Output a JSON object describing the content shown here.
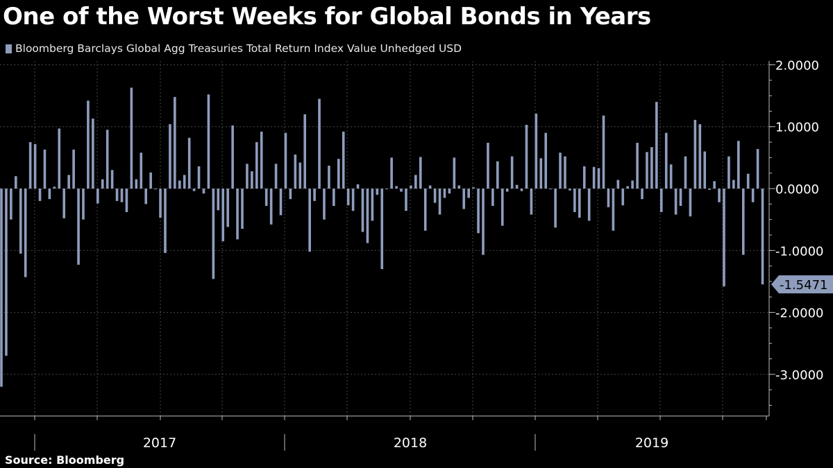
{
  "title": "One of the Worst Weeks for Global Bonds in Years",
  "source": "Source: Bloomberg",
  "colors": {
    "bar": "#8f9dbd",
    "background": "#000000",
    "grid": "#4a4a4a",
    "text": "#ffffff",
    "callout": "#8f9dbd"
  },
  "chart_data": {
    "type": "bar",
    "title": "One of the Worst Weeks for Global Bonds in Years",
    "series": [
      {
        "name": "Bloomberg Barclays Global Agg Treasuries Total Return Index Value Unhedged USD",
        "values": [
          -3.2,
          -2.7,
          -0.5,
          0.2,
          -1.05,
          -1.43,
          0.75,
          0.72,
          -0.2,
          0.63,
          -0.17,
          0.03,
          0.97,
          -0.48,
          0.22,
          0.63,
          -1.23,
          -0.5,
          1.42,
          1.13,
          -0.24,
          0.15,
          0.95,
          0.3,
          -0.2,
          -0.22,
          -0.38,
          1.63,
          0.15,
          0.58,
          -0.25,
          0.26,
          0.0,
          -0.47,
          -1.04,
          1.04,
          1.48,
          0.13,
          0.22,
          0.82,
          -0.04,
          0.36,
          -0.08,
          1.52,
          -1.46,
          -0.35,
          -0.85,
          -0.62,
          1.02,
          -0.82,
          -0.65,
          0.4,
          0.28,
          0.75,
          0.92,
          -0.28,
          -0.58,
          0.4,
          -0.43,
          0.9,
          -0.17,
          0.55,
          0.42,
          1.2,
          -1.02,
          -0.2,
          1.45,
          -0.5,
          0.37,
          -0.28,
          0.48,
          0.92,
          -0.27,
          -0.36,
          0.07,
          -0.7,
          -0.88,
          -0.52,
          -0.1,
          -1.3,
          0.0,
          0.5,
          0.04,
          -0.05,
          -0.36,
          0.05,
          0.22,
          0.51,
          -0.68,
          0.05,
          -0.23,
          -0.42,
          -0.15,
          -0.08,
          0.5,
          0.05,
          -0.33,
          -0.15,
          0.02,
          -0.72,
          -1.07,
          0.74,
          -0.28,
          0.44,
          -0.6,
          -0.05,
          0.52,
          0.06,
          -0.04,
          1.03,
          -0.42,
          1.21,
          0.49,
          0.9,
          0.0,
          -0.63,
          0.58,
          0.52,
          -0.03,
          -0.38,
          -0.47,
          0.36,
          -0.52,
          0.35,
          0.33,
          1.18,
          -0.3,
          -0.68,
          0.14,
          -0.27,
          0.04,
          0.13,
          0.74,
          -0.17,
          0.59,
          0.67,
          1.4,
          -0.38,
          0.9,
          0.39,
          -0.42,
          -0.28,
          0.52,
          -0.45,
          1.11,
          1.04,
          0.6,
          -0.02,
          0.12,
          -0.22,
          -1.58,
          0.52,
          0.14,
          0.77,
          -1.07,
          0.24,
          -0.22,
          0.64,
          -1.5471
        ]
      }
    ],
    "ylim": [
      -3.5,
      2.05
    ],
    "yticks": [
      2.0,
      1.0,
      0.0,
      -1.0,
      -2.0,
      -3.0
    ],
    "ytick_labels": [
      "2.0000",
      "1.0000",
      "0.0000",
      "-1.0000",
      "-2.0000",
      "-3.0000"
    ],
    "x_period_labels": [
      "2017",
      "2018",
      "2019"
    ],
    "last_value_label": "-1.5471",
    "xlabel": "",
    "ylabel": "",
    "grid": true,
    "legend_position": "top-left"
  }
}
